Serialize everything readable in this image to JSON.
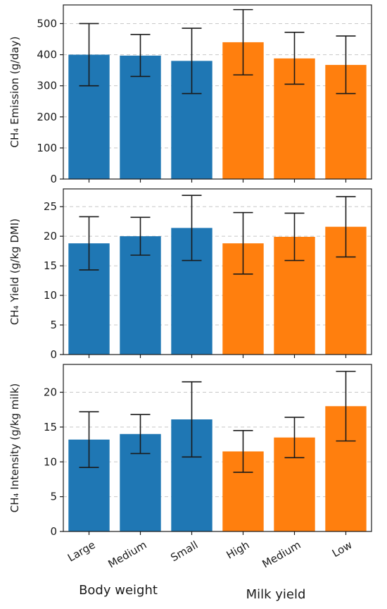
{
  "colors": {
    "body_weight": "#1f77b4",
    "milk_yield": "#ff7f0e",
    "error_bar": "#1a1a1a",
    "grid": "#c8c8c8"
  },
  "chart_data": [
    {
      "type": "bar",
      "ylabel": "CH₄ Emission (g/day)",
      "ylim": [
        0,
        560
      ],
      "yticks": [
        0,
        100,
        200,
        300,
        400,
        500
      ],
      "grid": true,
      "categories": [
        "Large",
        "Medium",
        "Small",
        "High",
        "Medium",
        "Low"
      ],
      "groups": [
        "body_weight",
        "body_weight",
        "body_weight",
        "milk_yield",
        "milk_yield",
        "milk_yield"
      ],
      "values": [
        400,
        397,
        380,
        440,
        388,
        367
      ],
      "error_low": [
        300,
        330,
        275,
        335,
        305,
        275
      ],
      "error_high": [
        500,
        465,
        485,
        545,
        472,
        460
      ]
    },
    {
      "type": "bar",
      "ylabel": "CH₄ Yield (g/kg DMI)",
      "ylim": [
        0,
        28
      ],
      "yticks": [
        0,
        5,
        10,
        15,
        20,
        25
      ],
      "grid": true,
      "categories": [
        "Large",
        "Medium",
        "Small",
        "High",
        "Medium",
        "Low"
      ],
      "groups": [
        "body_weight",
        "body_weight",
        "body_weight",
        "milk_yield",
        "milk_yield",
        "milk_yield"
      ],
      "values": [
        18.8,
        20.0,
        21.4,
        18.8,
        19.9,
        21.6
      ],
      "error_low": [
        14.3,
        16.8,
        15.9,
        13.6,
        15.9,
        16.5
      ],
      "error_high": [
        23.3,
        23.2,
        26.9,
        24.0,
        23.9,
        26.7
      ]
    },
    {
      "type": "bar",
      "ylabel": "CH₄ Intensity (g/kg milk)",
      "ylim": [
        0,
        24
      ],
      "yticks": [
        0,
        5,
        10,
        15,
        20
      ],
      "grid": true,
      "categories": [
        "Large",
        "Medium",
        "Small",
        "High",
        "Medium",
        "Low"
      ],
      "groups": [
        "body_weight",
        "body_weight",
        "body_weight",
        "milk_yield",
        "milk_yield",
        "milk_yield"
      ],
      "values": [
        13.2,
        14.0,
        16.1,
        11.5,
        13.5,
        18.0
      ],
      "error_low": [
        9.2,
        11.2,
        10.7,
        8.5,
        10.6,
        13.0
      ],
      "error_high": [
        17.2,
        16.8,
        21.5,
        14.5,
        16.4,
        23.0
      ]
    }
  ],
  "x_tick_labels": [
    "Large",
    "Medium",
    "Small",
    "High",
    "Medium",
    "Low"
  ],
  "group_labels": {
    "body_weight": "Body weight",
    "milk_yield": "Milk yield"
  }
}
